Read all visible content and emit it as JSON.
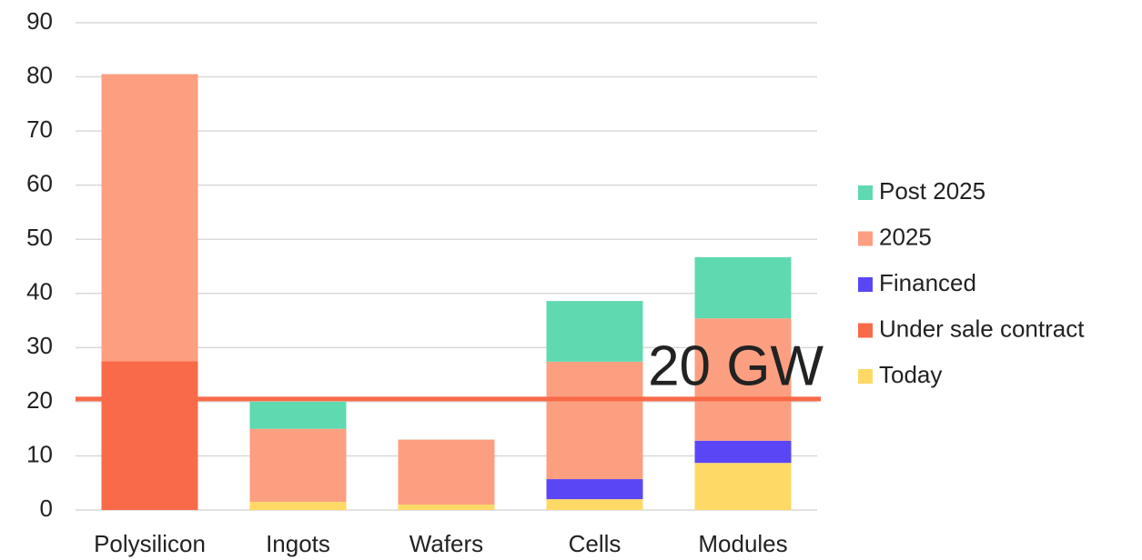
{
  "chart_data": {
    "type": "stacked_bar",
    "categories": [
      "Polysilicon",
      "Ingots",
      "Wafers",
      "Cells",
      "Modules"
    ],
    "series": [
      {
        "name": "Today",
        "color": "#ffd966",
        "values": [
          0,
          1.5,
          1,
          2,
          8.7
        ]
      },
      {
        "name": "Under sale contract",
        "color": "#f96a49",
        "values": [
          27.5,
          0,
          0,
          0,
          0
        ]
      },
      {
        "name": "Financed",
        "color": "#5b46f6",
        "values": [
          0,
          0,
          0,
          3.7,
          4.1
        ]
      },
      {
        "name": "2025",
        "color": "#fc9f80",
        "values": [
          53,
          13.5,
          12,
          21.7,
          22.6
        ]
      },
      {
        "name": "Post 2025",
        "color": "#5fd9b0",
        "values": [
          0,
          5,
          0,
          11.2,
          11.3
        ]
      }
    ],
    "ylim": [
      0,
      90
    ],
    "yticks": [
      0,
      10,
      20,
      30,
      40,
      50,
      60,
      70,
      80,
      90
    ],
    "grid": true,
    "legend": "right",
    "reference_line": {
      "value": 20.5,
      "label": "20 GW",
      "color": "#f96a49"
    }
  }
}
